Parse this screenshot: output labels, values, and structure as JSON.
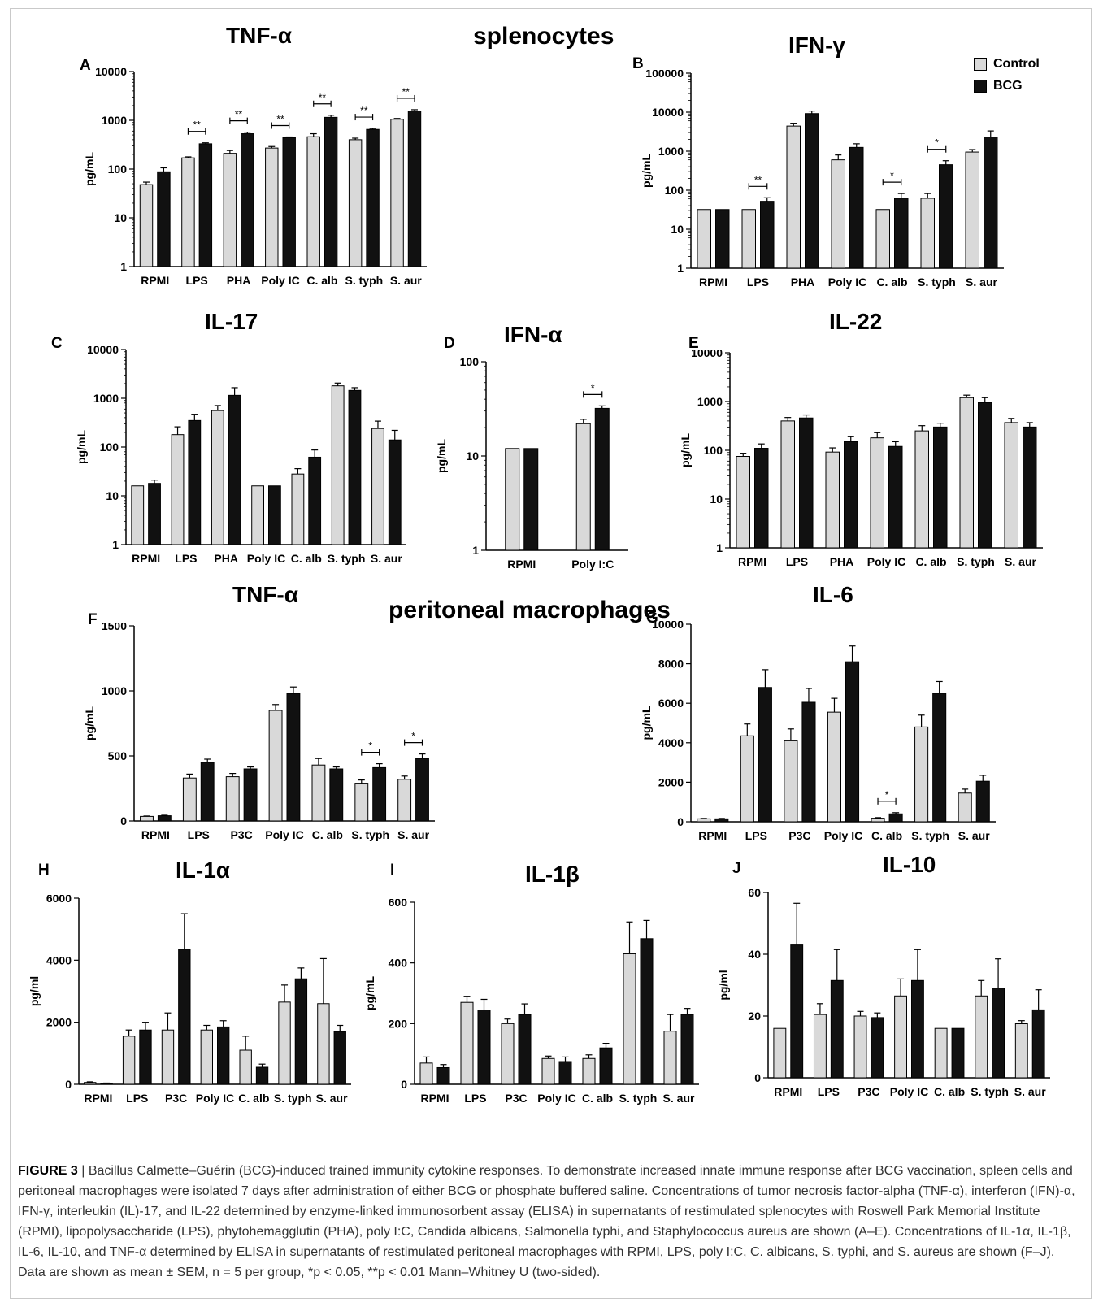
{
  "sections": [
    "splenocytes",
    "peritoneal macrophages"
  ],
  "legend": [
    "Control",
    "BCG"
  ],
  "colors": {
    "control": "#d9d9d9",
    "bcg": "#111111"
  },
  "caption": {
    "label": "FIGURE 3",
    "text": "Bacillus Calmette–Guérin (BCG)-induced trained immunity cytokine responses. To demonstrate increased innate immune response after BCG vaccination, spleen cells and peritoneal macrophages were isolated 7 days after administration of either BCG or phosphate buffered saline. Concentrations of tumor necrosis factor-alpha (TNF-α), interferon (IFN)-α, IFN-γ, interleukin (IL)-17, and IL-22 determined by enzyme-linked immunosorbent assay (ELISA) in supernatants of restimulated splenocytes with Roswell Park Memorial Institute (RPMI), lipopolysaccharide (LPS), phytohemagglutin (PHA), poly I:C, Candida albicans, Salmonella typhi, and Staphylococcus aureus are shown (A–E). Concentrations of IL-1α, IL-1β, IL-6, IL-10, and TNF-α determined by ELISA in supernatants of restimulated peritoneal macrophages with RPMI, LPS, poly I:C, C. albicans, S. typhi, and S. aureus are shown (F–J). Data are shown as mean ± SEM, n = 5 per group, *p < 0.05, **p < 0.01 Mann–Whitney U (two-sided)."
  },
  "chart_data": [
    {
      "panel": "A",
      "title": "TNF-α",
      "type": "bar",
      "log": true,
      "ylabel": "pg/mL",
      "ylim": [
        1,
        10000
      ],
      "yticks": [
        "1",
        "10",
        "100",
        "1000",
        "10000"
      ],
      "categories": [
        "RPMI",
        "LPS",
        "PHA",
        "Poly IC",
        "C. alb",
        "S. typh",
        "S. aur"
      ],
      "series": [
        {
          "name": "Control",
          "values": [
            48,
            170,
            210,
            270,
            460,
            400,
            1050
          ],
          "err": [
            6,
            8,
            30,
            20,
            70,
            30,
            40
          ]
        },
        {
          "name": "BCG",
          "values": [
            88,
            330,
            530,
            440,
            1150,
            650,
            1550
          ],
          "err": [
            18,
            15,
            40,
            15,
            120,
            30,
            100
          ]
        }
      ],
      "sig": [
        "",
        "**",
        "**",
        "**",
        "**",
        "**",
        "**"
      ]
    },
    {
      "panel": "B",
      "title": "IFN-γ",
      "type": "bar",
      "log": true,
      "ylabel": "pg/mL",
      "ylim": [
        1,
        100000
      ],
      "yticks": [
        "1",
        "10",
        "100",
        "1000",
        "10000",
        "100000"
      ],
      "categories": [
        "RPMI",
        "LPS",
        "PHA",
        "Poly IC",
        "C. alb",
        "S. typh",
        "S. aur"
      ],
      "series": [
        {
          "name": "Control",
          "values": [
            32,
            32,
            4400,
            600,
            32,
            62,
            950
          ],
          "err": [
            0,
            0,
            800,
            200,
            0,
            20,
            150
          ]
        },
        {
          "name": "BCG",
          "values": [
            32,
            52,
            9200,
            1250,
            62,
            450,
            2300
          ],
          "err": [
            0,
            12,
            1500,
            300,
            20,
            120,
            1000
          ]
        }
      ],
      "sig": [
        "",
        "**",
        "",
        "",
        "*",
        "*",
        ""
      ]
    },
    {
      "panel": "C",
      "title": "IL-17",
      "type": "bar",
      "log": true,
      "ylabel": "pg/mL",
      "ylim": [
        1,
        10000
      ],
      "yticks": [
        "1",
        "10",
        "100",
        "1000",
        "10000"
      ],
      "categories": [
        "RPMI",
        "LPS",
        "PHA",
        "Poly IC",
        "C. alb",
        "S. typh",
        "S. aur"
      ],
      "series": [
        {
          "name": "Control",
          "values": [
            16,
            180,
            560,
            16,
            28,
            1800,
            240
          ],
          "err": [
            0,
            80,
            150,
            0,
            8,
            250,
            100
          ]
        },
        {
          "name": "BCG",
          "values": [
            18,
            350,
            1150,
            16,
            62,
            1450,
            140
          ],
          "err": [
            3,
            120,
            500,
            0,
            25,
            200,
            80
          ]
        }
      ],
      "sig": [
        "",
        "",
        "",
        "",
        "",
        "",
        ""
      ]
    },
    {
      "panel": "D",
      "title": "IFN-α",
      "type": "bar",
      "log": true,
      "ylabel": "pg/mL",
      "ylim": [
        1,
        100
      ],
      "yticks": [
        "1",
        "10",
        "100"
      ],
      "categories": [
        "RPMI",
        "Poly I:C"
      ],
      "series": [
        {
          "name": "Control",
          "values": [
            12,
            22
          ],
          "err": [
            0,
            2.5
          ]
        },
        {
          "name": "BCG",
          "values": [
            12,
            32
          ],
          "err": [
            0,
            2
          ]
        }
      ],
      "sig": [
        "",
        "*"
      ]
    },
    {
      "panel": "E",
      "title": "IL-22",
      "type": "bar",
      "log": true,
      "ylabel": "pg/mL",
      "ylim": [
        1,
        10000
      ],
      "yticks": [
        "1",
        "10",
        "100",
        "1000",
        "10000"
      ],
      "categories": [
        "RPMI",
        "LPS",
        "PHA",
        "Poly IC",
        "C. alb",
        "S. typh",
        "S. aur"
      ],
      "series": [
        {
          "name": "Control",
          "values": [
            75,
            400,
            92,
            180,
            250,
            1200,
            370
          ],
          "err": [
            12,
            70,
            20,
            50,
            70,
            150,
            80
          ]
        },
        {
          "name": "BCG",
          "values": [
            110,
            460,
            150,
            120,
            300,
            950,
            300
          ],
          "err": [
            25,
            70,
            40,
            30,
            60,
            250,
            70
          ]
        }
      ],
      "sig": [
        "",
        "",
        "",
        "",
        "",
        "",
        ""
      ]
    },
    {
      "panel": "F",
      "title": "TNF-α",
      "type": "bar",
      "log": false,
      "ylabel": "pg/mL",
      "ylim": [
        0,
        1500
      ],
      "yticks": [
        "0",
        "500",
        "1000",
        "1500"
      ],
      "categories": [
        "RPMI",
        "LPS",
        "P3C",
        "Poly IC",
        "C. alb",
        "S. typh",
        "S. aur"
      ],
      "series": [
        {
          "name": "Control",
          "values": [
            35,
            330,
            340,
            850,
            430,
            290,
            320
          ],
          "err": [
            3,
            30,
            25,
            45,
            50,
            25,
            25
          ]
        },
        {
          "name": "BCG",
          "values": [
            40,
            450,
            400,
            980,
            400,
            410,
            480
          ],
          "err": [
            4,
            25,
            15,
            50,
            15,
            30,
            35
          ]
        }
      ],
      "sig": [
        "",
        "",
        "",
        "",
        "",
        "*",
        "*"
      ]
    },
    {
      "panel": "G",
      "title": "IL-6",
      "type": "bar",
      "log": false,
      "ylabel": "pg/mL",
      "ylim": [
        0,
        10000
      ],
      "yticks": [
        "0",
        "2000",
        "4000",
        "6000",
        "8000",
        "10000"
      ],
      "categories": [
        "RPMI",
        "LPS",
        "P3C",
        "Poly IC",
        "C. alb",
        "S. typh",
        "S. aur"
      ],
      "series": [
        {
          "name": "Control",
          "values": [
            150,
            4350,
            4100,
            5550,
            180,
            4800,
            1450
          ],
          "err": [
            20,
            600,
            600,
            700,
            30,
            600,
            200
          ]
        },
        {
          "name": "BCG",
          "values": [
            150,
            6800,
            6050,
            8100,
            400,
            6500,
            2050
          ],
          "err": [
            20,
            900,
            700,
            800,
            60,
            600,
            300
          ]
        }
      ],
      "sig": [
        "",
        "",
        "",
        "",
        "*",
        "",
        ""
      ]
    },
    {
      "panel": "H",
      "title": "IL-1α",
      "type": "bar",
      "log": false,
      "ylabel": "pg/ml",
      "ylim": [
        0,
        6000
      ],
      "yticks": [
        "0",
        "2000",
        "4000",
        "6000"
      ],
      "categories": [
        "RPMI",
        "LPS",
        "P3C",
        "Poly IC",
        "C. alb",
        "S. typh",
        "S. aur"
      ],
      "series": [
        {
          "name": "Control",
          "values": [
            60,
            1550,
            1750,
            1750,
            1100,
            2650,
            2600
          ],
          "err": [
            20,
            200,
            550,
            150,
            450,
            550,
            1450
          ]
        },
        {
          "name": "BCG",
          "values": [
            30,
            1750,
            4350,
            1850,
            550,
            3400,
            1700
          ],
          "err": [
            10,
            250,
            1150,
            200,
            100,
            350,
            200
          ]
        }
      ],
      "sig": [
        "",
        "",
        "",
        "",
        "",
        "",
        ""
      ]
    },
    {
      "panel": "I",
      "title": "IL-1β",
      "type": "bar",
      "log": false,
      "ylabel": "pg/mL",
      "ylim": [
        0,
        600
      ],
      "yticks": [
        "0",
        "200",
        "400",
        "600"
      ],
      "categories": [
        "RPMI",
        "LPS",
        "P3C",
        "Poly IC",
        "C. alb",
        "S. typh",
        "S. aur"
      ],
      "series": [
        {
          "name": "Control",
          "values": [
            70,
            270,
            200,
            85,
            85,
            430,
            175
          ],
          "err": [
            20,
            20,
            15,
            8,
            12,
            105,
            55
          ]
        },
        {
          "name": "BCG",
          "values": [
            55,
            245,
            230,
            75,
            120,
            480,
            230
          ],
          "err": [
            10,
            35,
            35,
            15,
            15,
            60,
            20
          ]
        }
      ],
      "sig": [
        "",
        "",
        "",
        "",
        "",
        "",
        ""
      ]
    },
    {
      "panel": "J",
      "title": "IL-10",
      "type": "bar",
      "log": false,
      "ylabel": "pg/ml",
      "ylim": [
        0,
        60
      ],
      "yticks": [
        "0",
        "20",
        "40",
        "60"
      ],
      "categories": [
        "RPMI",
        "LPS",
        "P3C",
        "Poly IC",
        "C. alb",
        "S. typh",
        "S. aur"
      ],
      "series": [
        {
          "name": "Control",
          "values": [
            16,
            20.5,
            20,
            26.5,
            16,
            26.5,
            17.5
          ],
          "err": [
            0,
            3.5,
            1.5,
            5.5,
            0,
            5,
            1
          ]
        },
        {
          "name": "BCG",
          "values": [
            43,
            31.5,
            19.5,
            31.5,
            16,
            29,
            22
          ],
          "err": [
            13.5,
            10,
            1.5,
            10,
            0,
            9.5,
            6.5
          ]
        }
      ],
      "sig": [
        "",
        "",
        "",
        "",
        "",
        "",
        ""
      ]
    }
  ]
}
